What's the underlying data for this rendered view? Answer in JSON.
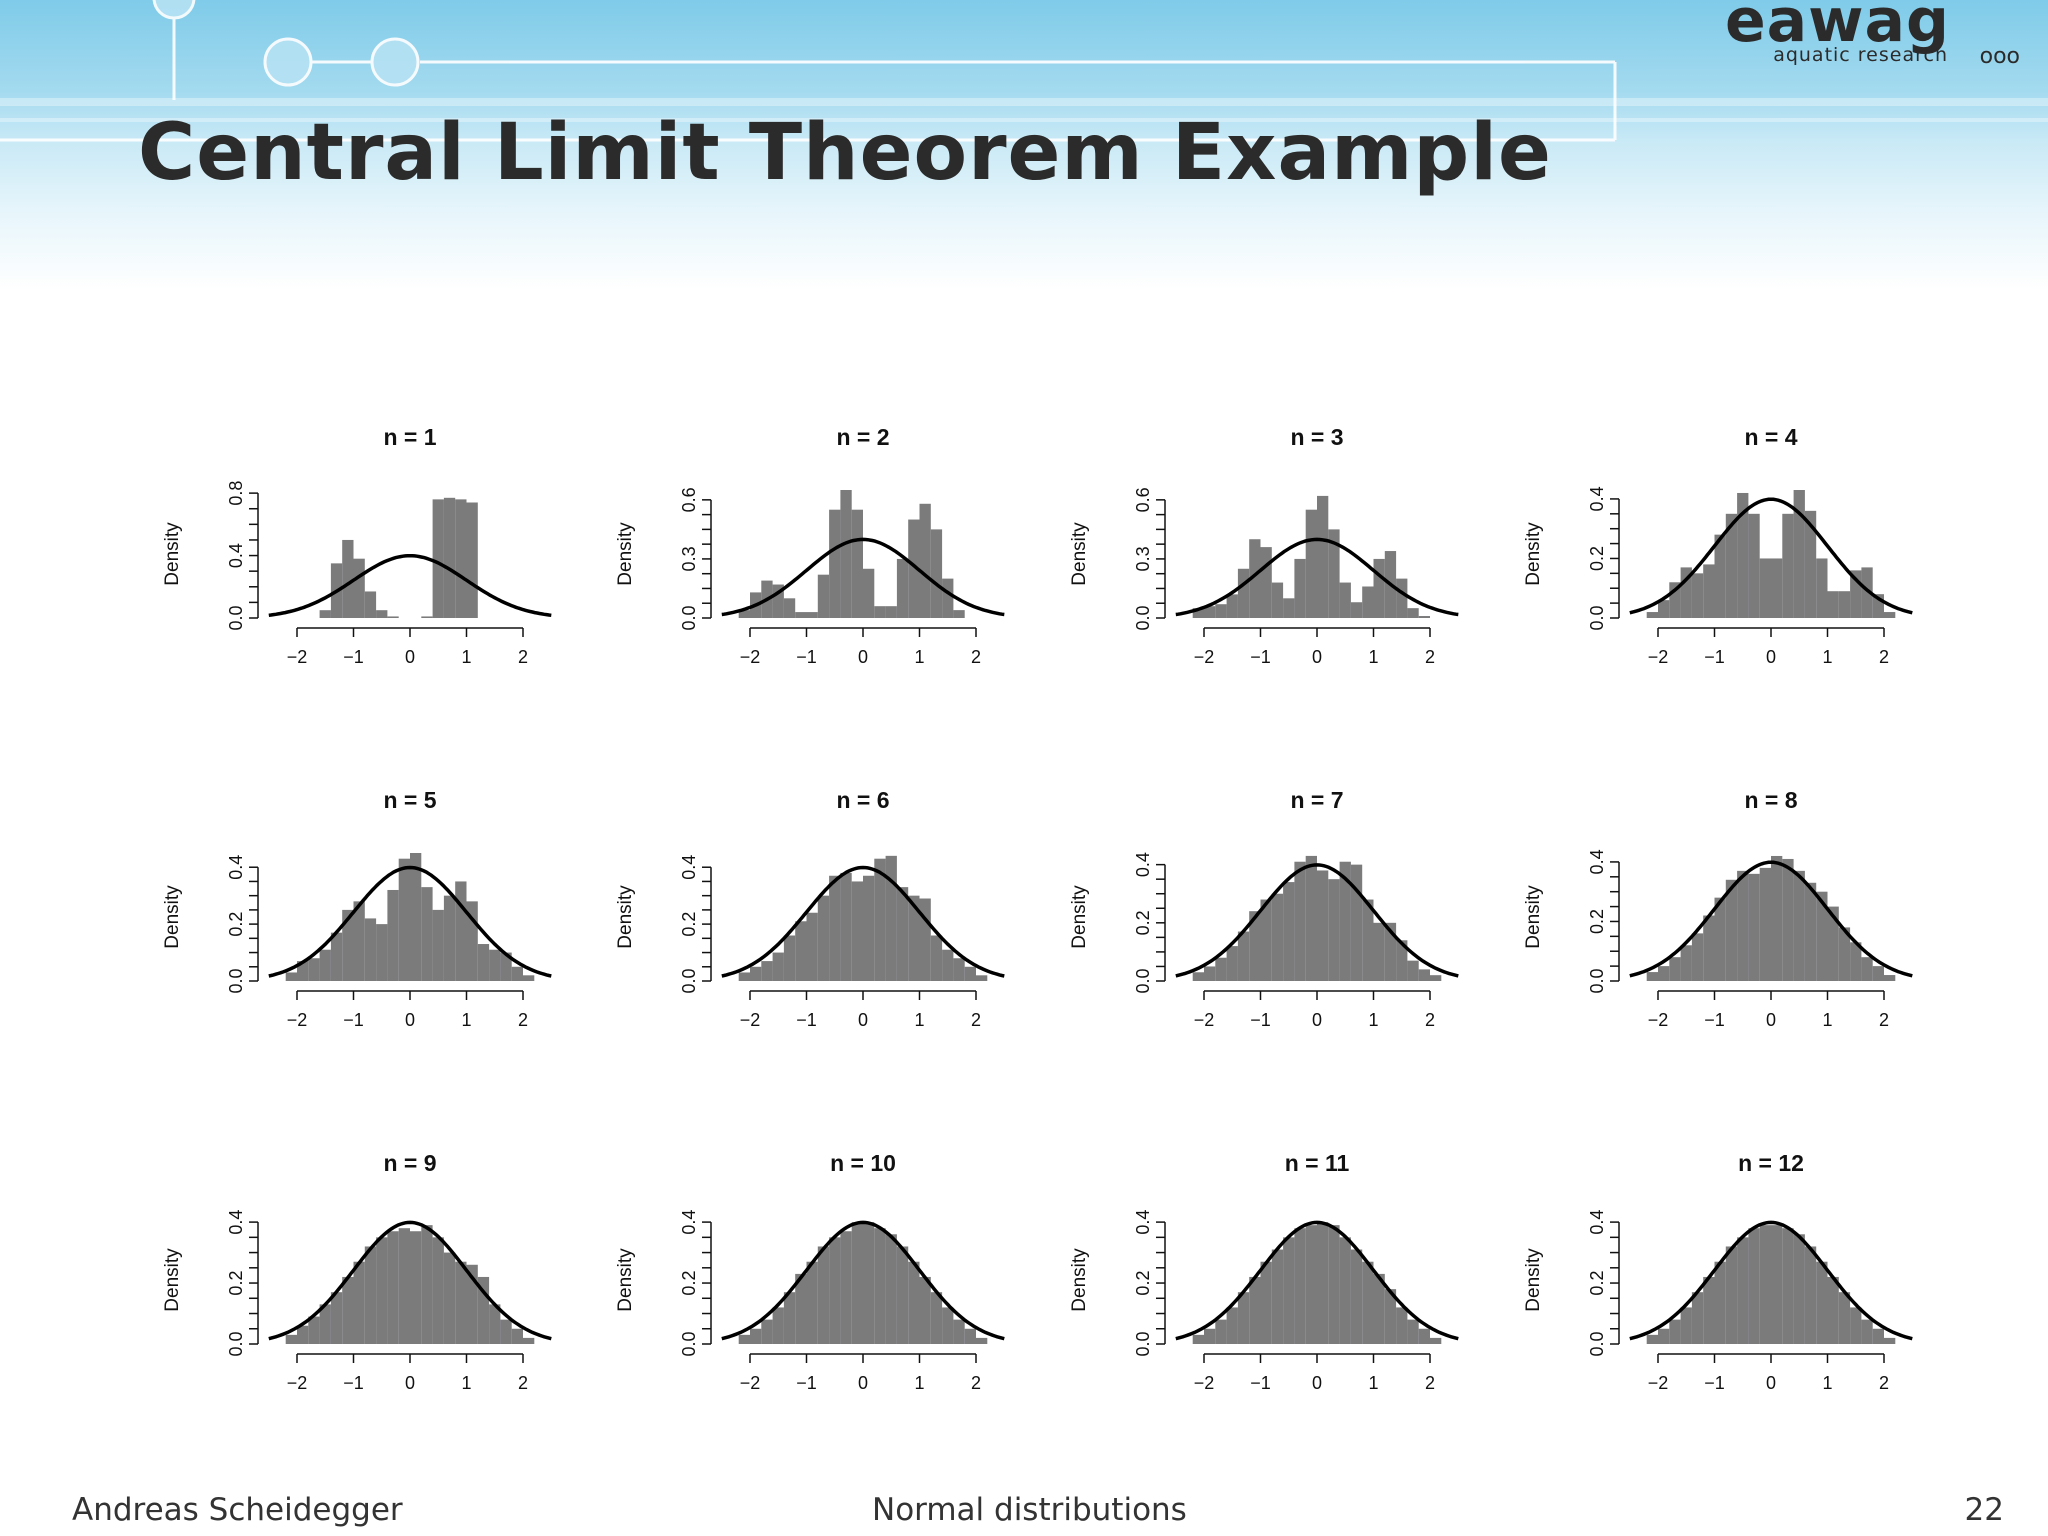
{
  "slide": {
    "title": "Central Limit Theorem Example",
    "logo": {
      "word": "eawag",
      "subtitle": "aquatic research",
      "dots": "ooo"
    },
    "footer": {
      "author": "Andreas Scheidegger",
      "topic": "Normal distributions",
      "page": "22"
    }
  },
  "colors": {
    "bar": "#7b7b7c",
    "curve": "#000000",
    "header": "#7fcbe9"
  },
  "chart_data": [
    {
      "type": "bar",
      "title": "n = 1",
      "ylabel": "Density",
      "xlim": [
        -2.5,
        2.5
      ],
      "ylim": [
        0,
        0.82
      ],
      "x_ticks": [
        "−2",
        "−1",
        "0",
        "1",
        "2"
      ],
      "y_ticks": [
        "0.0",
        "0.4",
        "0.8"
      ],
      "y_tick_values": [
        0,
        0.4,
        0.8
      ],
      "x": [
        -1.5,
        -1.3,
        -1.1,
        -0.9,
        -0.7,
        -0.5,
        -0.3,
        -0.1,
        0.1,
        0.3,
        0.5,
        0.7,
        0.9,
        1.1,
        1.3,
        1.5
      ],
      "values": [
        0.05,
        0.35,
        0.5,
        0.38,
        0.17,
        0.05,
        0.01,
        0,
        0,
        0.01,
        0.76,
        0.77,
        0.76,
        0.74,
        0,
        0
      ]
    },
    {
      "type": "bar",
      "title": "n = 2",
      "ylabel": "Density",
      "xlim": [
        -2.5,
        2.5
      ],
      "ylim": [
        0,
        0.65
      ],
      "x_ticks": [
        "−2",
        "−1",
        "0",
        "1",
        "2"
      ],
      "y_ticks": [
        "0.0",
        "0.3",
        "0.6"
      ],
      "y_tick_values": [
        0,
        0.3,
        0.6
      ],
      "x": [
        -2.1,
        -1.9,
        -1.7,
        -1.5,
        -1.3,
        -1.1,
        -0.9,
        -0.7,
        -0.5,
        -0.3,
        -0.1,
        0.1,
        0.3,
        0.5,
        0.7,
        0.9,
        1.1,
        1.3,
        1.5,
        1.7
      ],
      "values": [
        0.04,
        0.13,
        0.19,
        0.17,
        0.1,
        0.03,
        0.03,
        0.22,
        0.55,
        0.65,
        0.55,
        0.25,
        0.06,
        0.06,
        0.3,
        0.5,
        0.58,
        0.45,
        0.2,
        0.04
      ]
    },
    {
      "type": "bar",
      "title": "n = 3",
      "ylabel": "Density",
      "xlim": [
        -2.5,
        2.5
      ],
      "ylim": [
        0,
        0.65
      ],
      "x_ticks": [
        "−2",
        "−1",
        "0",
        "1",
        "2"
      ],
      "y_ticks": [
        "0.0",
        "0.3",
        "0.6"
      ],
      "y_tick_values": [
        0,
        0.3,
        0.6
      ],
      "x": [
        -2.1,
        -1.9,
        -1.7,
        -1.5,
        -1.3,
        -1.1,
        -0.9,
        -0.7,
        -0.5,
        -0.3,
        -0.1,
        0.1,
        0.3,
        0.5,
        0.7,
        0.9,
        1.1,
        1.3,
        1.5,
        1.7,
        1.9
      ],
      "values": [
        0.05,
        0.06,
        0.07,
        0.12,
        0.25,
        0.4,
        0.36,
        0.18,
        0.1,
        0.3,
        0.55,
        0.62,
        0.45,
        0.18,
        0.08,
        0.16,
        0.3,
        0.34,
        0.2,
        0.05,
        0.01
      ]
    },
    {
      "type": "bar",
      "title": "n = 4",
      "ylabel": "Density",
      "xlim": [
        -2.5,
        2.5
      ],
      "ylim": [
        0,
        0.43
      ],
      "x_ticks": [
        "−2",
        "−1",
        "0",
        "1",
        "2"
      ],
      "y_ticks": [
        "0.0",
        "0.2",
        "0.4"
      ],
      "y_tick_values": [
        0,
        0.2,
        0.4
      ],
      "x": [
        -2.1,
        -1.9,
        -1.7,
        -1.5,
        -1.3,
        -1.1,
        -0.9,
        -0.7,
        -0.5,
        -0.3,
        -0.1,
        0.1,
        0.3,
        0.5,
        0.7,
        0.9,
        1.1,
        1.3,
        1.5,
        1.7,
        1.9,
        2.1
      ],
      "values": [
        0.02,
        0.06,
        0.12,
        0.17,
        0.15,
        0.18,
        0.28,
        0.35,
        0.42,
        0.35,
        0.2,
        0.2,
        0.35,
        0.43,
        0.36,
        0.2,
        0.09,
        0.09,
        0.16,
        0.17,
        0.08,
        0.02
      ]
    },
    {
      "type": "bar",
      "title": "n = 5",
      "ylabel": "Density",
      "xlim": [
        -2.5,
        2.5
      ],
      "ylim": [
        0,
        0.45
      ],
      "x_ticks": [
        "−2",
        "−1",
        "0",
        "1",
        "2"
      ],
      "y_ticks": [
        "0.0",
        "0.2",
        "0.4"
      ],
      "y_tick_values": [
        0,
        0.2,
        0.4
      ],
      "x": [
        -2.1,
        -1.9,
        -1.7,
        -1.5,
        -1.3,
        -1.1,
        -0.9,
        -0.7,
        -0.5,
        -0.3,
        -0.1,
        0.1,
        0.3,
        0.5,
        0.7,
        0.9,
        1.1,
        1.3,
        1.5,
        1.7,
        1.9,
        2.1
      ],
      "values": [
        0.03,
        0.07,
        0.08,
        0.11,
        0.17,
        0.25,
        0.28,
        0.22,
        0.2,
        0.32,
        0.43,
        0.45,
        0.33,
        0.25,
        0.3,
        0.35,
        0.28,
        0.13,
        0.11,
        0.1,
        0.05,
        0.02
      ]
    },
    {
      "type": "bar",
      "title": "n = 6",
      "ylabel": "Density",
      "xlim": [
        -2.5,
        2.5
      ],
      "ylim": [
        0,
        0.45
      ],
      "x_ticks": [
        "−2",
        "−1",
        "0",
        "1",
        "2"
      ],
      "y_ticks": [
        "0.0",
        "0.2",
        "0.4"
      ],
      "y_tick_values": [
        0,
        0.2,
        0.4
      ],
      "x": [
        -2.1,
        -1.9,
        -1.7,
        -1.5,
        -1.3,
        -1.1,
        -0.9,
        -0.7,
        -0.5,
        -0.3,
        -0.1,
        0.1,
        0.3,
        0.5,
        0.7,
        0.9,
        1.1,
        1.3,
        1.5,
        1.7,
        1.9,
        2.1
      ],
      "values": [
        0.03,
        0.05,
        0.07,
        0.1,
        0.16,
        0.21,
        0.24,
        0.3,
        0.37,
        0.38,
        0.35,
        0.37,
        0.43,
        0.44,
        0.33,
        0.3,
        0.29,
        0.16,
        0.11,
        0.08,
        0.05,
        0.02
      ]
    },
    {
      "type": "bar",
      "title": "n = 7",
      "ylabel": "Density",
      "xlim": [
        -2.5,
        2.5
      ],
      "ylim": [
        0,
        0.44
      ],
      "x_ticks": [
        "−2",
        "−1",
        "0",
        "1",
        "2"
      ],
      "y_ticks": [
        "0.0",
        "0.2",
        "0.4"
      ],
      "y_tick_values": [
        0,
        0.2,
        0.4
      ],
      "x": [
        -2.1,
        -1.9,
        -1.7,
        -1.5,
        -1.3,
        -1.1,
        -0.9,
        -0.7,
        -0.5,
        -0.3,
        -0.1,
        0.1,
        0.3,
        0.5,
        0.7,
        0.9,
        1.1,
        1.3,
        1.5,
        1.7,
        1.9,
        2.1
      ],
      "values": [
        0.03,
        0.05,
        0.08,
        0.12,
        0.17,
        0.24,
        0.28,
        0.3,
        0.34,
        0.41,
        0.43,
        0.38,
        0.35,
        0.41,
        0.4,
        0.28,
        0.2,
        0.2,
        0.14,
        0.07,
        0.04,
        0.02
      ]
    },
    {
      "type": "bar",
      "title": "n = 8",
      "ylabel": "Density",
      "xlim": [
        -2.5,
        2.5
      ],
      "ylim": [
        0,
        0.43
      ],
      "x_ticks": [
        "−2",
        "−1",
        "0",
        "1",
        "2"
      ],
      "y_ticks": [
        "0.0",
        "0.2",
        "0.4"
      ],
      "y_tick_values": [
        0,
        0.2,
        0.4
      ],
      "x": [
        -2.1,
        -1.9,
        -1.7,
        -1.5,
        -1.3,
        -1.1,
        -0.9,
        -0.7,
        -0.5,
        -0.3,
        -0.1,
        0.1,
        0.3,
        0.5,
        0.7,
        0.9,
        1.1,
        1.3,
        1.5,
        1.7,
        1.9,
        2.1
      ],
      "values": [
        0.03,
        0.05,
        0.08,
        0.12,
        0.16,
        0.22,
        0.28,
        0.34,
        0.37,
        0.36,
        0.38,
        0.42,
        0.41,
        0.37,
        0.33,
        0.3,
        0.25,
        0.18,
        0.13,
        0.08,
        0.05,
        0.02
      ]
    },
    {
      "type": "bar",
      "title": "n = 9",
      "ylabel": "Density",
      "xlim": [
        -2.5,
        2.5
      ],
      "ylim": [
        0,
        0.42
      ],
      "x_ticks": [
        "−2",
        "−1",
        "0",
        "1",
        "2"
      ],
      "y_ticks": [
        "0.0",
        "0.2",
        "0.4"
      ],
      "y_tick_values": [
        0,
        0.2,
        0.4
      ],
      "x": [
        -2.1,
        -1.9,
        -1.7,
        -1.5,
        -1.3,
        -1.1,
        -0.9,
        -0.7,
        -0.5,
        -0.3,
        -0.1,
        0.1,
        0.3,
        0.5,
        0.7,
        0.9,
        1.1,
        1.3,
        1.5,
        1.7,
        1.9,
        2.1
      ],
      "values": [
        0.03,
        0.06,
        0.09,
        0.13,
        0.17,
        0.22,
        0.27,
        0.32,
        0.35,
        0.37,
        0.38,
        0.37,
        0.39,
        0.35,
        0.3,
        0.27,
        0.26,
        0.22,
        0.13,
        0.08,
        0.05,
        0.02
      ]
    },
    {
      "type": "bar",
      "title": "n = 10",
      "ylabel": "Density",
      "xlim": [
        -2.5,
        2.5
      ],
      "ylim": [
        0,
        0.42
      ],
      "x_ticks": [
        "−2",
        "−1",
        "0",
        "1",
        "2"
      ],
      "y_ticks": [
        "0.0",
        "0.2",
        "0.4"
      ],
      "y_tick_values": [
        0,
        0.2,
        0.4
      ],
      "x": [
        -2.1,
        -1.9,
        -1.7,
        -1.5,
        -1.3,
        -1.1,
        -0.9,
        -0.7,
        -0.5,
        -0.3,
        -0.1,
        0.1,
        0.3,
        0.5,
        0.7,
        0.9,
        1.1,
        1.3,
        1.5,
        1.7,
        1.9,
        2.1
      ],
      "values": [
        0.03,
        0.05,
        0.08,
        0.12,
        0.17,
        0.23,
        0.27,
        0.32,
        0.35,
        0.37,
        0.4,
        0.4,
        0.38,
        0.36,
        0.32,
        0.27,
        0.22,
        0.17,
        0.12,
        0.08,
        0.05,
        0.02
      ]
    },
    {
      "type": "bar",
      "title": "n = 11",
      "ylabel": "Density",
      "xlim": [
        -2.5,
        2.5
      ],
      "ylim": [
        0,
        0.42
      ],
      "x_ticks": [
        "−2",
        "−1",
        "0",
        "1",
        "2"
      ],
      "y_ticks": [
        "0.0",
        "0.2",
        "0.4"
      ],
      "y_tick_values": [
        0,
        0.2,
        0.4
      ],
      "x": [
        -2.1,
        -1.9,
        -1.7,
        -1.5,
        -1.3,
        -1.1,
        -0.9,
        -0.7,
        -0.5,
        -0.3,
        -0.1,
        0.1,
        0.3,
        0.5,
        0.7,
        0.9,
        1.1,
        1.3,
        1.5,
        1.7,
        1.9,
        2.1
      ],
      "values": [
        0.03,
        0.05,
        0.08,
        0.12,
        0.17,
        0.22,
        0.27,
        0.31,
        0.35,
        0.38,
        0.39,
        0.4,
        0.39,
        0.35,
        0.31,
        0.27,
        0.23,
        0.18,
        0.12,
        0.08,
        0.05,
        0.02
      ]
    },
    {
      "type": "bar",
      "title": "n = 12",
      "ylabel": "Density",
      "xlim": [
        -2.5,
        2.5
      ],
      "ylim": [
        0,
        0.42
      ],
      "x_ticks": [
        "−2",
        "−1",
        "0",
        "1",
        "2"
      ],
      "y_ticks": [
        "0.0",
        "0.2",
        "0.4"
      ],
      "y_tick_values": [
        0,
        0.2,
        0.4
      ],
      "x": [
        -2.1,
        -1.9,
        -1.7,
        -1.5,
        -1.3,
        -1.1,
        -0.9,
        -0.7,
        -0.5,
        -0.3,
        -0.1,
        0.1,
        0.3,
        0.5,
        0.7,
        0.9,
        1.1,
        1.3,
        1.5,
        1.7,
        1.9,
        2.1
      ],
      "values": [
        0.03,
        0.05,
        0.08,
        0.12,
        0.17,
        0.22,
        0.27,
        0.32,
        0.35,
        0.38,
        0.39,
        0.39,
        0.38,
        0.36,
        0.32,
        0.27,
        0.22,
        0.17,
        0.12,
        0.08,
        0.05,
        0.02
      ]
    }
  ]
}
